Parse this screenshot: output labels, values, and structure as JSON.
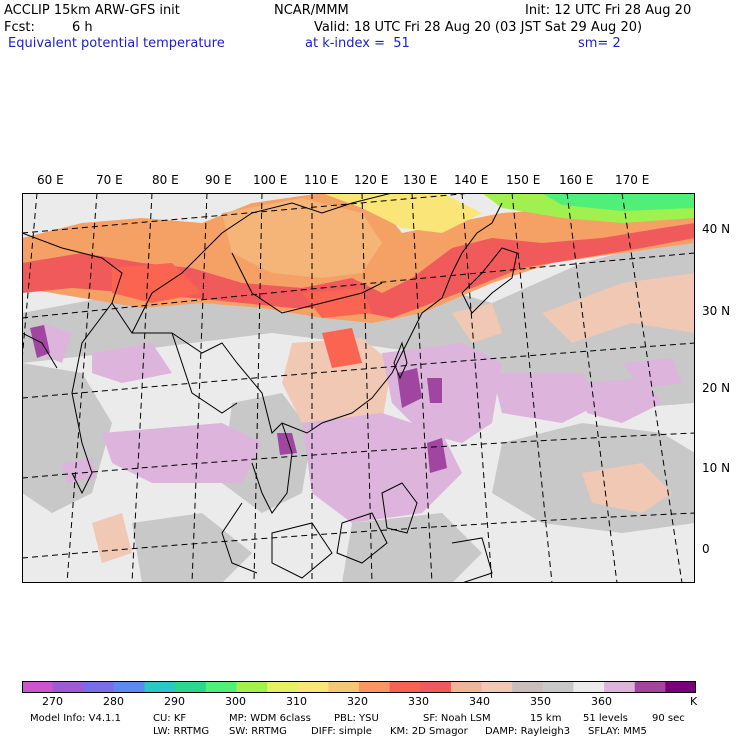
{
  "header": {
    "model": "ACCLIP 15km ARW-GFS init",
    "org": "NCAR/MMM",
    "init": "Init: 12 UTC Fri 28 Aug 20",
    "fcst_label": "Fcst:",
    "fcst_value": "6 h",
    "valid": "Valid: 18 UTC Fri 28 Aug 20 (03 JST Sat 29 Aug 20)",
    "field": "Equivalent potential temperature",
    "level": "at k-index =  51",
    "smooth": "sm= 2"
  },
  "map": {
    "lon_labels": [
      "60 E",
      "70 E",
      "80 E",
      "90 E",
      "100 E",
      "110 E",
      "120 E",
      "130 E",
      "140 E",
      "150 E",
      "160 E",
      "170 E"
    ],
    "lat_labels": [
      "40 N",
      "30 N",
      "20 N",
      "10 N",
      "0"
    ]
  },
  "colorbar": {
    "colors": [
      "#cc55cc",
      "#a05ad2",
      "#7a6ee6",
      "#5a8cf0",
      "#28c8c8",
      "#28d88c",
      "#50f078",
      "#a0f050",
      "#e6f064",
      "#fae678",
      "#f5c878",
      "#fa9664",
      "#f56450",
      "#f05a5a",
      "#f0b496",
      "#f0c8b4",
      "#c8bebe",
      "#c8c8c8",
      "#ebebeb",
      "#dcb4dc",
      "#a046a0",
      "#780078"
    ],
    "labels": [
      "270",
      "280",
      "290",
      "300",
      "310",
      "320",
      "330",
      "340",
      "350",
      "360"
    ],
    "unit": "K"
  },
  "footer": {
    "line1": [
      "Model Info: V4.1.1",
      "CU: KF",
      "MP: WDM 6class",
      "PBL: YSU",
      "SF: Noah LSM",
      "15 km",
      "51 levels",
      "90 sec"
    ],
    "line2": [
      "LW: RRTMG",
      "SW: RRTMG",
      "DIFF: simple",
      "KM: 2D Smagor",
      "DAMP: Rayleigh3",
      "SFLAY: MM5"
    ]
  }
}
